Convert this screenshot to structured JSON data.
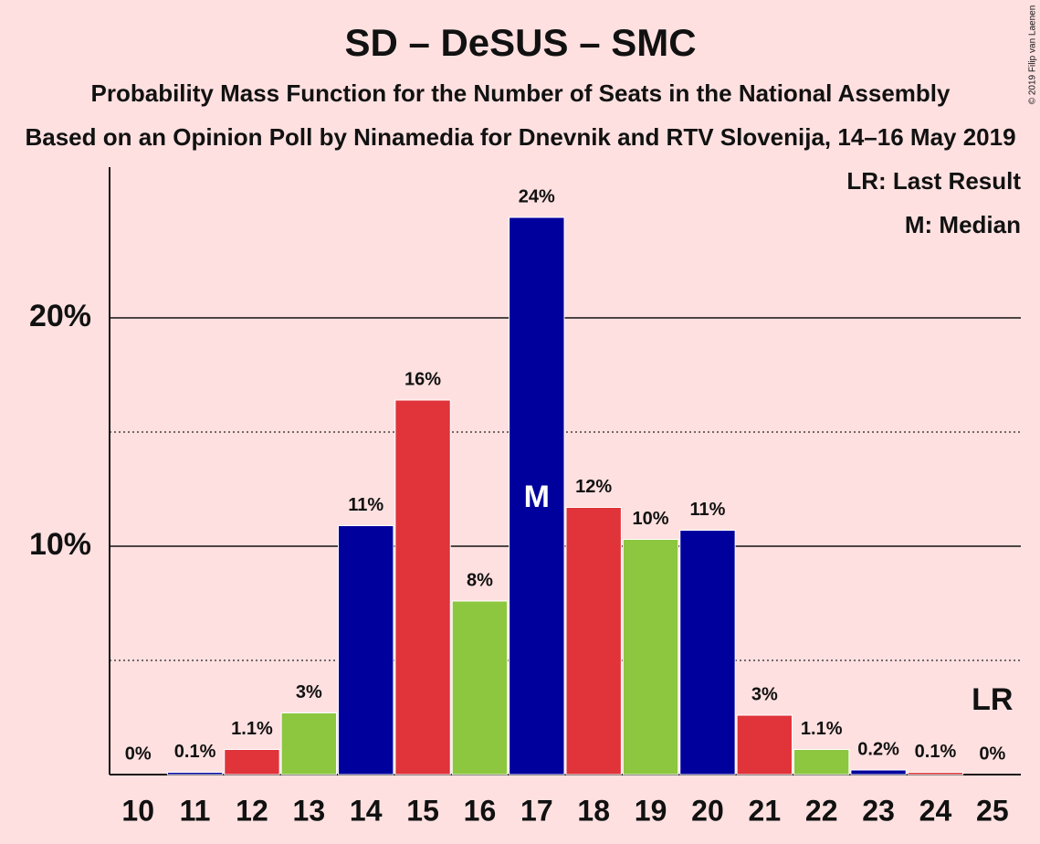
{
  "chart_data": {
    "type": "bar",
    "title": "SD – DeSUS – SMC",
    "subtitle": "Probability Mass Function for the Number of Seats in the National Assembly",
    "subtitle2": "Based on an Opinion Poll by Ninamedia for Dnevnik and RTV Slovenija, 14–16 May 2019",
    "copyright": "© 2019 Filip van Laenen",
    "legend": [
      "LR: Last Result",
      "M: Median"
    ],
    "categories": [
      "10",
      "11",
      "12",
      "13",
      "14",
      "15",
      "16",
      "17",
      "18",
      "19",
      "20",
      "21",
      "22",
      "23",
      "24",
      "25"
    ],
    "values": [
      0,
      0.1,
      1.1,
      2.7,
      10.9,
      16.4,
      7.6,
      24.4,
      11.7,
      10.3,
      10.7,
      2.6,
      1.1,
      0.2,
      0.1,
      0
    ],
    "value_labels": [
      "0%",
      "0.1%",
      "1.1%",
      "3%",
      "11%",
      "16%",
      "8%",
      "24%",
      "12%",
      "10%",
      "11%",
      "3%",
      "1.1%",
      "0.2%",
      "0.1%",
      "0%"
    ],
    "colors": [
      "#8dc63f",
      "#00009c",
      "#e0333a",
      "#8dc63f",
      "#00009c",
      "#e0333a",
      "#8dc63f",
      "#00009c",
      "#e0333a",
      "#8dc63f",
      "#00009c",
      "#e0333a",
      "#8dc63f",
      "#00009c",
      "#e0333a",
      "#8dc63f"
    ],
    "median": {
      "label": "M",
      "category": "17"
    },
    "last_result": {
      "label": "LR",
      "category": "25"
    },
    "ylim": [
      0,
      26.6
    ],
    "yticks": [
      {
        "value": 10,
        "label": "10%"
      },
      {
        "value": 20,
        "label": "20%"
      }
    ],
    "minor_yticks": [
      5,
      15
    ],
    "grid": true
  }
}
